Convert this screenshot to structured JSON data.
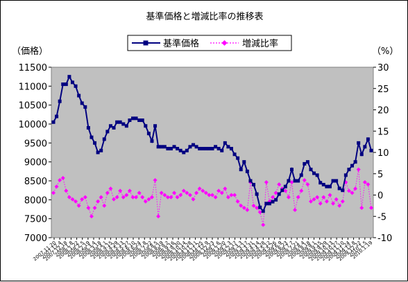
{
  "chart_data": {
    "type": "line",
    "title": "基準価格と増減比率の推移表",
    "left_axis": {
      "label": "（価格）",
      "ylim": [
        7000,
        11500
      ],
      "ticks": [
        7000,
        7500,
        8000,
        8500,
        9000,
        9500,
        10000,
        10500,
        11000,
        11500
      ]
    },
    "right_axis": {
      "label": "（%）",
      "ylim": [
        -10,
        30
      ],
      "ticks": [
        -10,
        -5,
        0,
        5,
        10,
        15,
        20,
        25,
        30
      ]
    },
    "x_tick_labels": [
      "2007.11.20",
      "2007.12.4",
      "2007.12.18",
      "2008.1.8",
      "2008.1.22",
      "2008.2.5",
      "2008.2.19",
      "2008.3.4",
      "2008.3.18",
      "2008.4.1",
      "2008.4.15",
      "2008.4.29",
      "2008.5.13",
      "2008.5.27",
      "2008.6.10",
      "2008.6.24",
      "2008.7.8",
      "2008.7.22",
      "2008.8.5",
      "2008.8.19",
      "2008.9.2",
      "2008.9.16",
      "2008.9.30",
      "2008.10.14",
      "2008.10.28",
      "2008.11.11",
      "2008.11.25",
      "2008.12.9",
      "2008.12.23",
      "2009.1.6",
      "2009.1.20",
      "2009.2.3",
      "2009.2.17",
      "2009.3.3",
      "2009.3.17",
      "2009.3.31",
      "2009.4.14",
      "2009.4.28",
      "2009.5.12",
      "2009.5.26",
      "2009.6.9",
      "2009.6.23",
      "2009.7.7",
      "2009.7.21",
      "2009.8.4",
      "2009.8.18",
      "2009.9.1",
      "2009.9.15",
      "2009.9.29",
      "2009.10.13",
      "2009.10.27",
      "2009.11.10",
      "2009.11.24",
      "2009.12.8",
      "2009.12.22",
      "2010.1.5",
      "2010.1.19"
    ],
    "series": [
      {
        "name": "基準価格",
        "axis": "left",
        "color": "#000080",
        "marker": "square",
        "line": "solid",
        "values": [
          10050,
          10200,
          10600,
          11050,
          11050,
          11250,
          11100,
          11000,
          10750,
          10550,
          10450,
          9900,
          9650,
          9500,
          9250,
          9300,
          9600,
          9800,
          9950,
          9900,
          10050,
          10050,
          10000,
          9950,
          10100,
          10150,
          10150,
          10100,
          10100,
          9950,
          9750,
          9550,
          9950,
          9400,
          9400,
          9400,
          9350,
          9350,
          9400,
          9350,
          9300,
          9250,
          9300,
          9400,
          9450,
          9400,
          9350,
          9350,
          9350,
          9350,
          9350,
          9400,
          9350,
          9300,
          9500,
          9400,
          9350,
          9200,
          9100,
          8800,
          9000,
          8750,
          8500,
          8400,
          8150,
          7800,
          7700,
          7900,
          7900,
          7950,
          8000,
          8150,
          8250,
          8350,
          8500,
          8800,
          8500,
          8500,
          8650,
          8950,
          9000,
          8800,
          8700,
          8650,
          8450,
          8400,
          8350,
          8350,
          8500,
          8500,
          8300,
          8250,
          8650,
          8800,
          8900,
          9000,
          9500,
          9200,
          9400,
          9600,
          9300
        ]
      },
      {
        "name": "増減比率",
        "axis": "right",
        "color": "#ff00ff",
        "marker": "diamond",
        "line": "dotted",
        "values": [
          0.5,
          2,
          3.5,
          4,
          1,
          -0.5,
          -1,
          -1.5,
          -2.5,
          -1,
          -0.5,
          -3,
          -5,
          -3,
          -1.5,
          -0.5,
          -2.5,
          0.5,
          1.5,
          -1,
          -0.5,
          1,
          -0.5,
          0,
          1,
          -0.5,
          -0.5,
          0.5,
          -0.5,
          -1.5,
          -1,
          -0.5,
          3.5,
          -5,
          0.5,
          0,
          -0.5,
          -0.5,
          0.5,
          -0.5,
          0,
          1,
          0.5,
          0,
          -1,
          0.5,
          1.5,
          1,
          0.5,
          0,
          0,
          -0.5,
          1,
          0.5,
          1.5,
          -0.5,
          0,
          0,
          -1.5,
          -2.5,
          -3,
          -3.5,
          3,
          -2.5,
          -3,
          -4,
          -7,
          3,
          -1.5,
          -0.5,
          0.5,
          2.5,
          1.5,
          1,
          -0.5,
          3,
          -3.5,
          -0.5,
          1,
          3.5,
          2.5,
          -1.5,
          -1,
          -0.5,
          -2,
          -0.5,
          -1.5,
          0,
          -2,
          -1,
          -2.5,
          -1.5,
          3,
          1,
          0.5,
          1.5,
          6,
          -3,
          3,
          2.5,
          -3
        ]
      }
    ],
    "legend_position": "top-center",
    "plot_background": "#c0c0c0",
    "grid": false
  }
}
